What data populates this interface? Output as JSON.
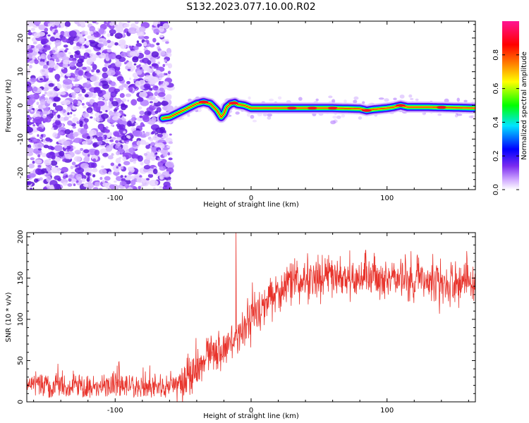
{
  "title": "S132.2023.077.10.00.R02",
  "colors": {
    "snr_line": "#e8332b",
    "colormap": [
      "#ffffff",
      "#cfa8ff",
      "#7b2cf0",
      "#0000ff",
      "#00e5ff",
      "#00ff00",
      "#ffff00",
      "#ff8800",
      "#ff0000",
      "#ff1493"
    ]
  },
  "chart_data": [
    {
      "type": "heatmap",
      "title": "",
      "xlabel": "Height of straight line (km)",
      "ylabel": "Frequency (Hz)",
      "xlim": [
        -165,
        165
      ],
      "ylim": [
        -25,
        25
      ],
      "xticks": [
        -100,
        0,
        100
      ],
      "yticks": [
        -20,
        -10,
        0,
        10,
        20
      ],
      "noise_region_x": [
        -165,
        -63
      ],
      "ridge_x": [
        -65,
        -60,
        -55,
        -50,
        -45,
        -40,
        -35,
        -30,
        -25,
        -22,
        -20,
        -18,
        -15,
        -12,
        -10,
        -5,
        0,
        20,
        60,
        80,
        85,
        90,
        100,
        105,
        110,
        115,
        130,
        165
      ],
      "ridge_freq": [
        -3.8,
        -3.5,
        -2.5,
        -1.5,
        -0.5,
        0.5,
        1,
        0.5,
        -1.5,
        -3.5,
        -2.5,
        -0.5,
        0.5,
        0.8,
        0.3,
        0,
        -0.8,
        -0.8,
        -0.8,
        -1,
        -1.5,
        -1.2,
        -0.8,
        -0.5,
        0,
        -0.5,
        -0.5,
        -0.8
      ],
      "colorbar": {
        "label": "Normalized spectral amplitude",
        "range": [
          0,
          1
        ],
        "ticks": [
          "0.0",
          "0.2",
          "0.4",
          "0.6",
          "0.8"
        ]
      }
    },
    {
      "type": "line",
      "title": "",
      "xlabel": "Height of straight line (km)",
      "ylabel": "SNR (10 * v/v)",
      "xlim": [
        -165,
        165
      ],
      "ylim": [
        0,
        205
      ],
      "xticks": [
        -100,
        0,
        100
      ],
      "yticks": [
        0,
        50,
        100,
        150,
        200
      ],
      "trend": {
        "x": [
          -165,
          -120,
          -80,
          -60,
          -50,
          -40,
          -30,
          -20,
          -10,
          0,
          10,
          20,
          30,
          40,
          60,
          80,
          100,
          120,
          140,
          165
        ],
        "y": [
          20,
          18,
          17,
          18,
          25,
          38,
          52,
          65,
          80,
          100,
          118,
          133,
          145,
          150,
          150,
          150,
          150,
          148,
          145,
          140
        ]
      },
      "spike": {
        "x": -11,
        "y": 205
      }
    }
  ]
}
